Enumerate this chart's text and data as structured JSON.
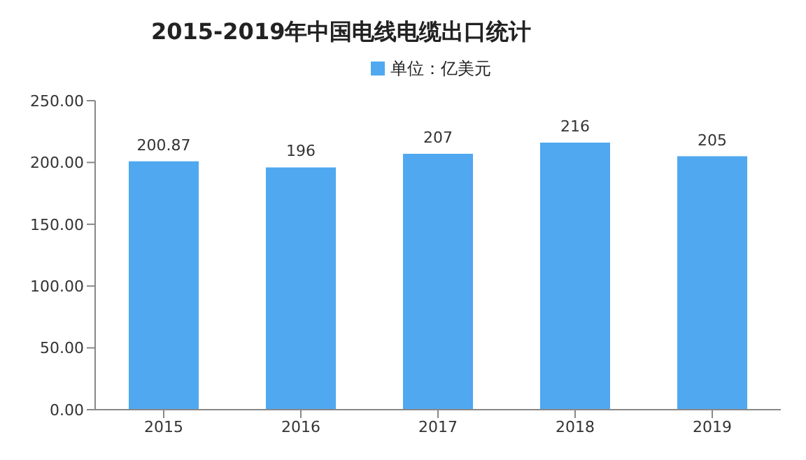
{
  "chart_data": {
    "type": "bar",
    "title": "2015-2019年中国电线电缆出口统计",
    "categories": [
      "2015",
      "2016",
      "2017",
      "2018",
      "2019"
    ],
    "series": [
      {
        "name": "单位：亿美元",
        "color": "#4fa8f0",
        "values": [
          200.87,
          196,
          207,
          216,
          205
        ]
      }
    ],
    "ylim": [
      0,
      250
    ],
    "yticks": [
      {
        "value": 0,
        "label": "0.00"
      },
      {
        "value": 50,
        "label": "50.00"
      },
      {
        "value": 100,
        "label": "100.00"
      },
      {
        "value": 150,
        "label": "150.00"
      },
      {
        "value": 200,
        "label": "200.00"
      },
      {
        "value": 250,
        "label": "250.00"
      }
    ],
    "data_labels": true,
    "legend": "top",
    "grid": false
  }
}
